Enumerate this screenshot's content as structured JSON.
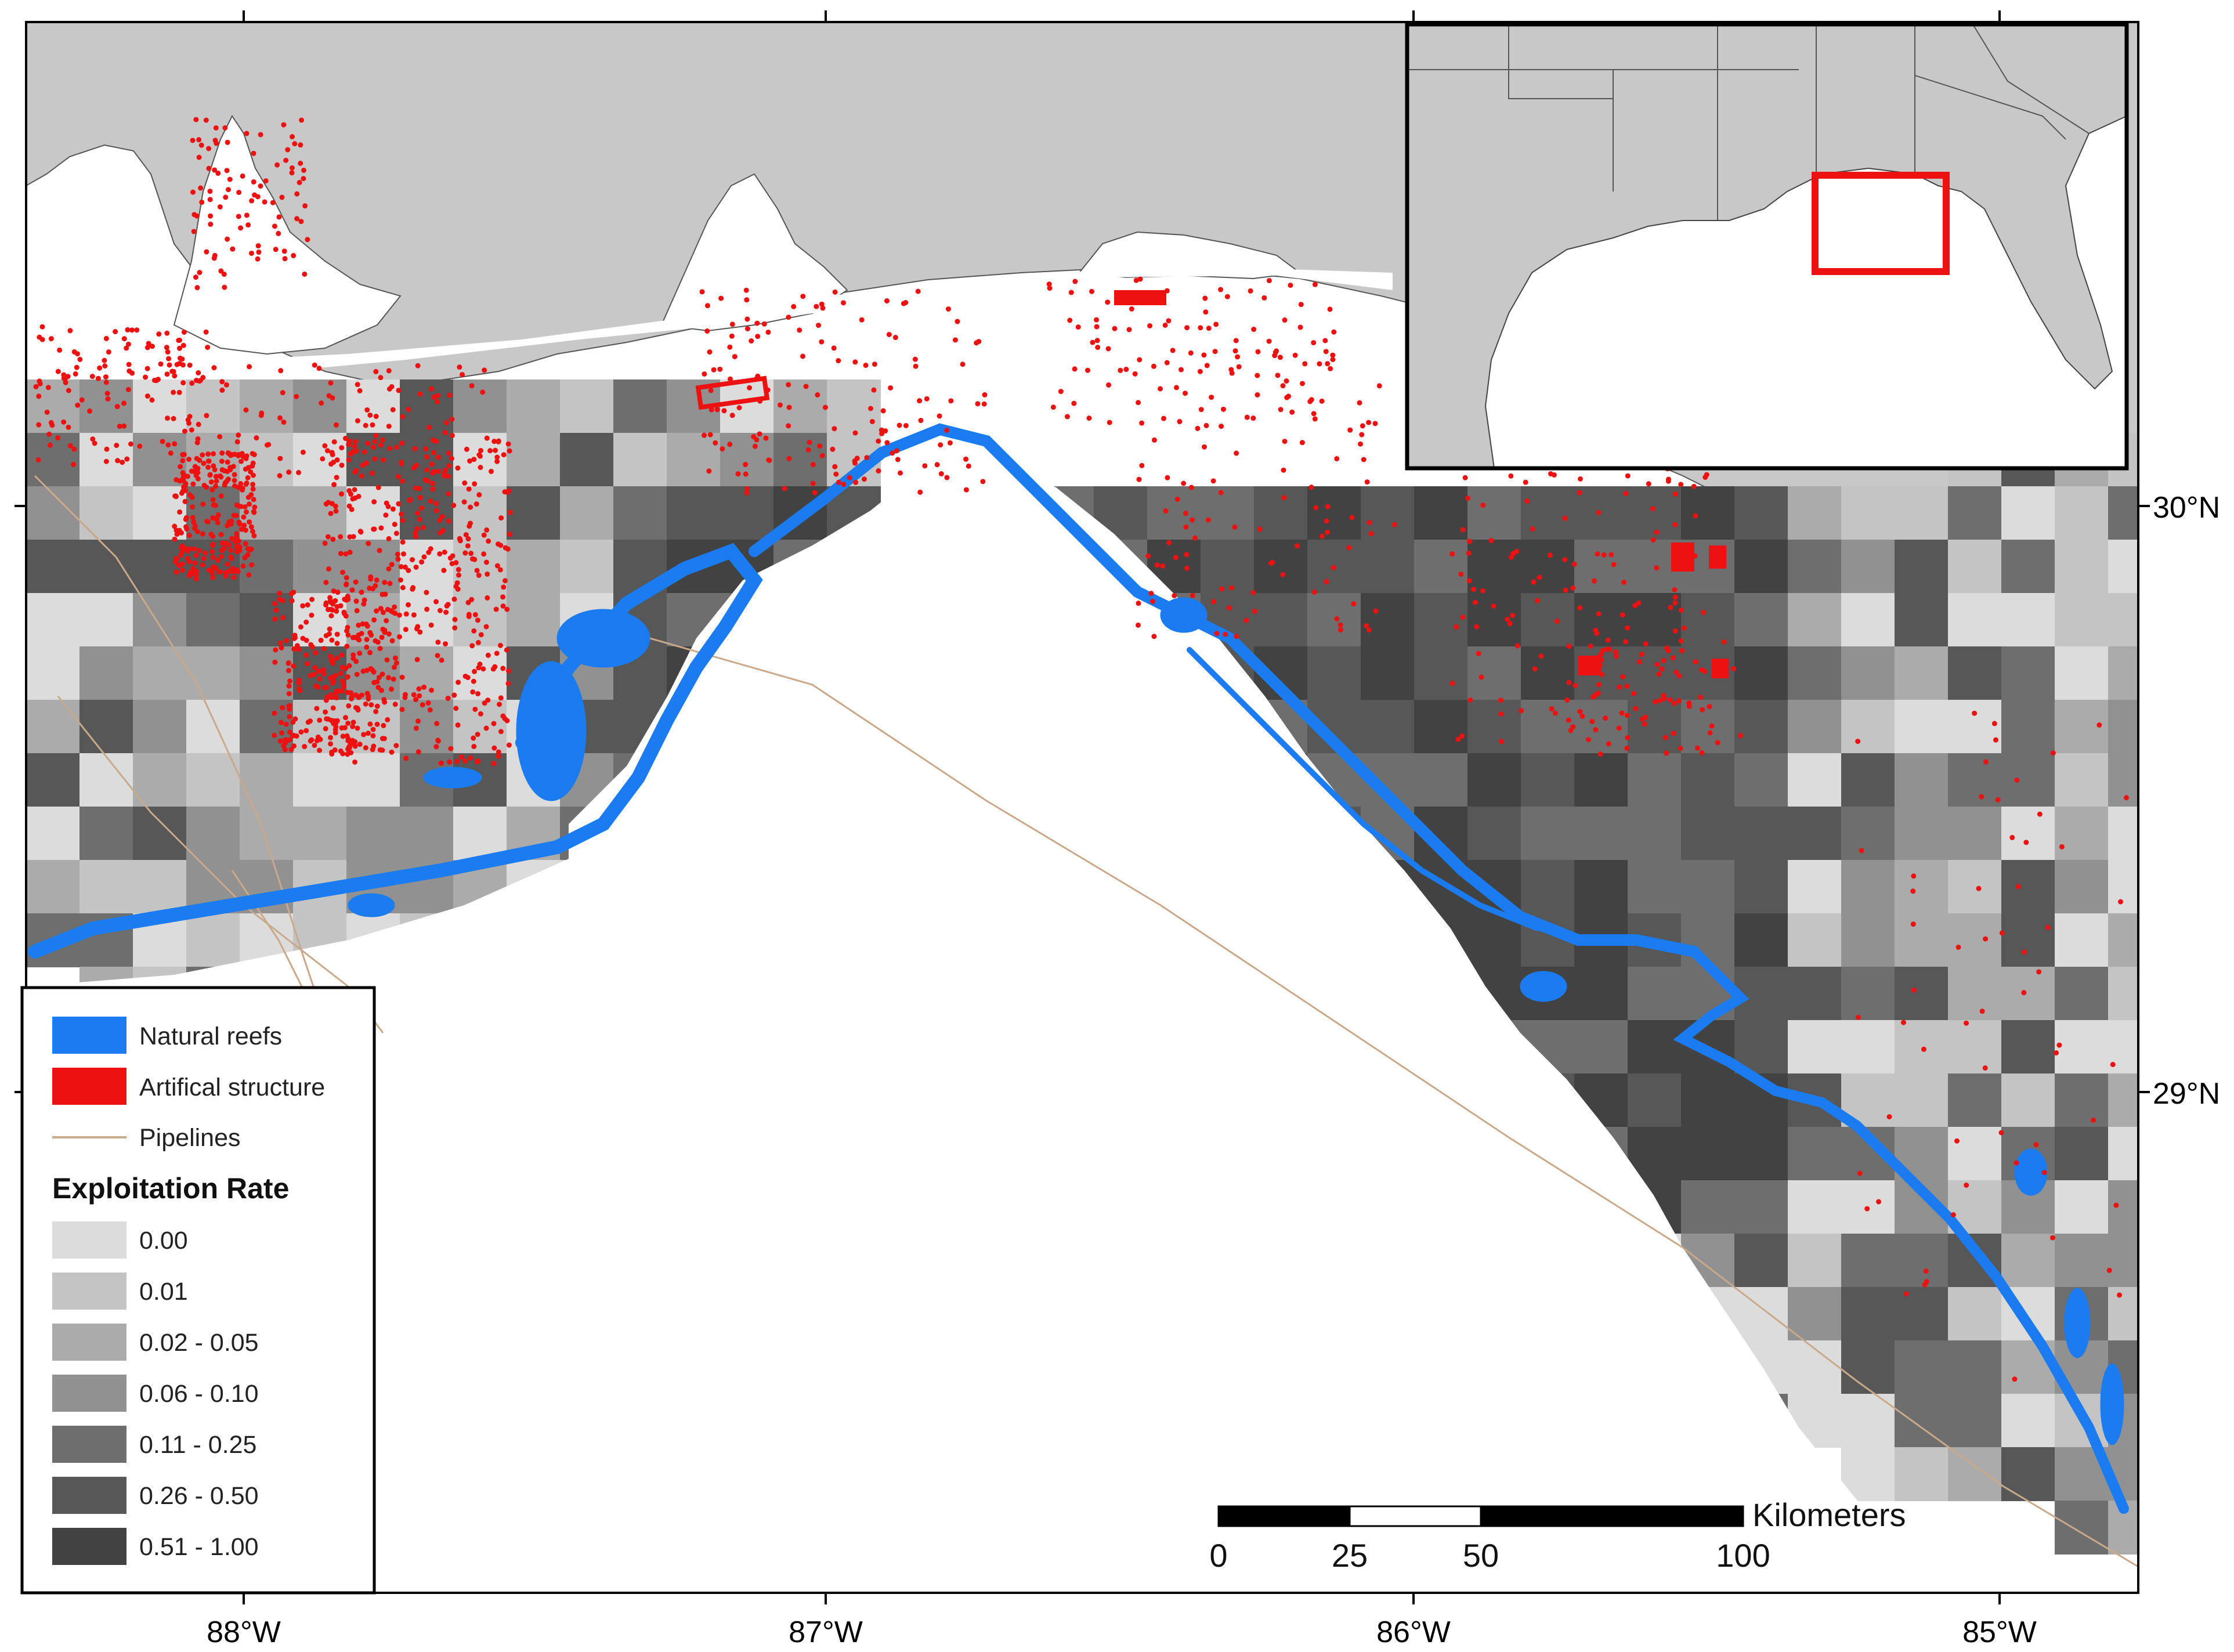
{
  "axes": {
    "longitude_labels": [
      "88°W",
      "87°W",
      "86°W",
      "85°W"
    ],
    "latitude_labels": [
      "30°N",
      "29°N"
    ]
  },
  "legend": {
    "items": [
      {
        "label": "Natural reefs",
        "color": "#1a7cf0"
      },
      {
        "label": "Artifical structure",
        "color": "#ee1111"
      },
      {
        "label": "Pipelines",
        "color": "#c9a98a"
      }
    ],
    "title": "Exploitation Rate",
    "classes": [
      {
        "label": "0.00",
        "color": "#dcdcdc"
      },
      {
        "label": "0.01",
        "color": "#c4c4c4"
      },
      {
        "label": "0.02 - 0.05",
        "color": "#ababab"
      },
      {
        "label": "0.06 - 0.10",
        "color": "#919191"
      },
      {
        "label": "0.11 - 0.25",
        "color": "#6e6e6e"
      },
      {
        "label": "0.26 - 0.50",
        "color": "#575757"
      },
      {
        "label": "0.51 - 1.00",
        "color": "#424242"
      }
    ]
  },
  "scale_bar": {
    "unit": "Kilometers",
    "ticks": [
      "0",
      "25",
      "50",
      "100"
    ]
  },
  "colors": {
    "land": "#c8c8c8",
    "water": "#ffffff",
    "inset_box": "#ee1111",
    "frame": "#000000"
  }
}
